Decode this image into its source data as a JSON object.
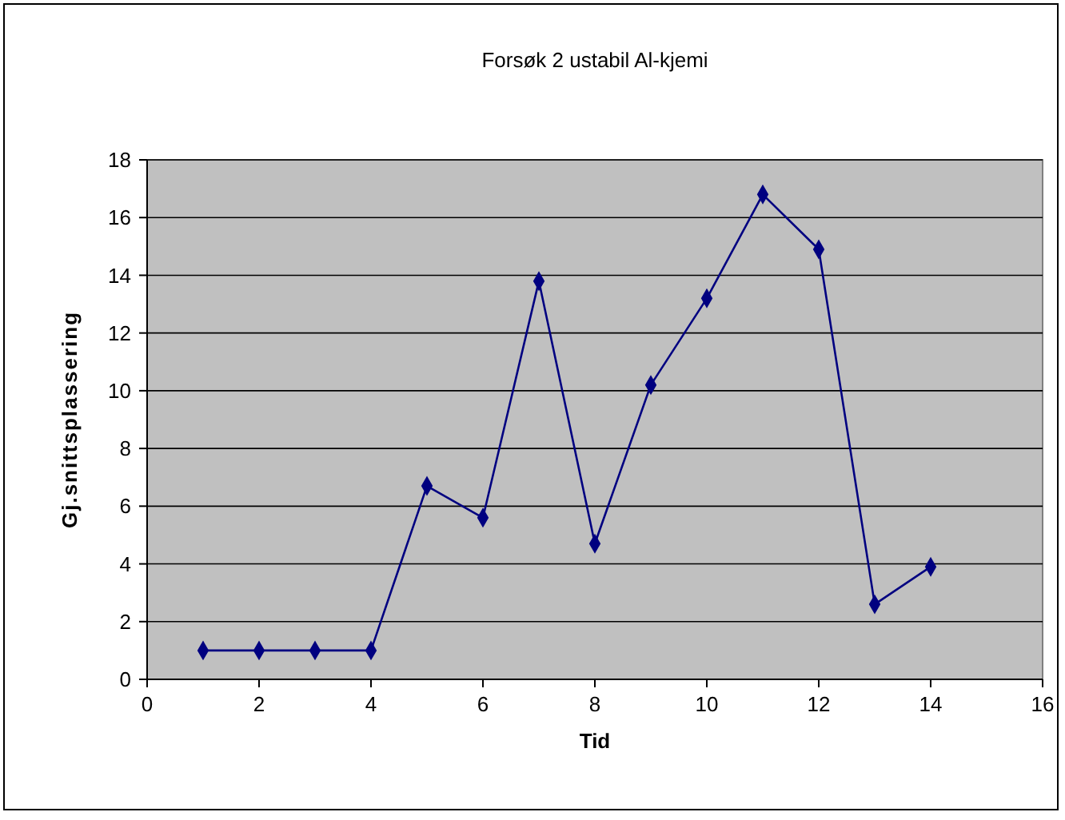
{
  "chart_data": {
    "type": "line",
    "title": "Forsøk 2 ustabil Al-kjemi",
    "xlabel": "Tid",
    "ylabel": "Gj.snittsplassering",
    "x": [
      1,
      2,
      3,
      4,
      5,
      6,
      7,
      8,
      9,
      10,
      11,
      12,
      13,
      14
    ],
    "series": [
      {
        "color": "#000080",
        "values": [
          1,
          1,
          1,
          1,
          6.7,
          5.6,
          13.8,
          4.7,
          10.2,
          13.2,
          16.8,
          14.9,
          2.6,
          3.9
        ]
      }
    ],
    "xlim": [
      0,
      16
    ],
    "xticks": [
      0,
      2,
      4,
      6,
      8,
      10,
      12,
      14,
      16
    ],
    "ylim": [
      0,
      18
    ],
    "yticks": [
      0,
      2,
      4,
      6,
      8,
      10,
      12,
      14,
      16,
      18
    ],
    "grid": "y",
    "marker": "diamond",
    "line_style": "solid"
  }
}
